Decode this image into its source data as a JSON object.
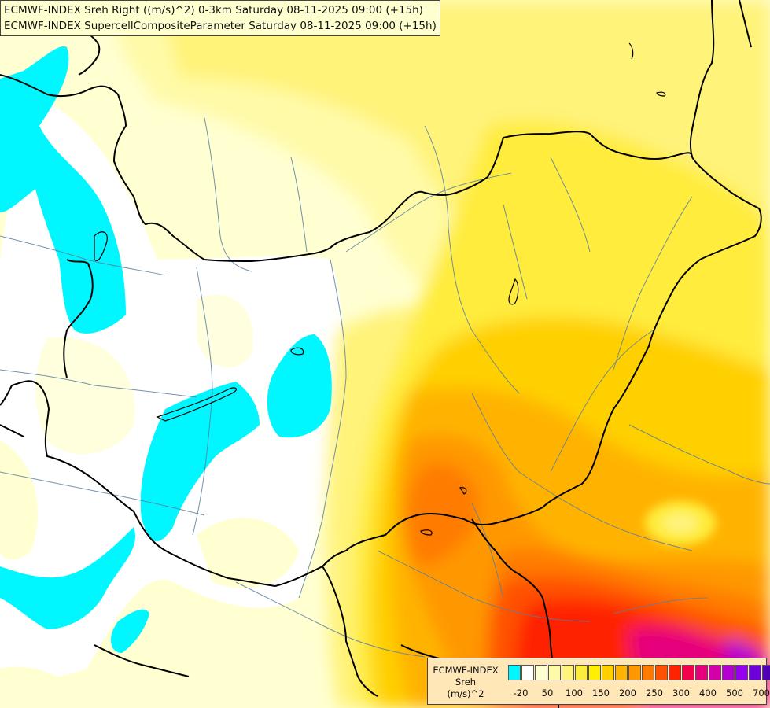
{
  "title": {
    "line1": "ECMWF-INDEX Sreh Right ((m/s)^2) 0-3km Saturday 08-11-2025 09:00 (+15h)",
    "line2": "ECMWF-INDEX SupercellCompositeParameter Saturday 08-11-2025 09:00 (+15h)"
  },
  "legend": {
    "line1": "ECMWF-INDEX",
    "line2": "Sreh",
    "line3": "(m/s)^2",
    "colors": [
      "#00f7ff",
      "#ffffff",
      "#ffffd2",
      "#fffaa8",
      "#fff37a",
      "#ffec3c",
      "#fff000",
      "#ffd000",
      "#ffb300",
      "#ff9800",
      "#ff7b00",
      "#ff5100",
      "#ff2300",
      "#f5004b",
      "#e6007d",
      "#d200a8",
      "#b400d2",
      "#9600f0",
      "#6e00dc",
      "#5000b4",
      "#0a0a8c"
    ],
    "tick_labels": [
      "-20",
      "50",
      "100",
      "150",
      "200",
      "250",
      "300",
      "400",
      "500",
      "700"
    ]
  },
  "colors": {
    "cyan": "#00f7ff",
    "border_line": "#000000",
    "river_line": "#5a7fa0"
  }
}
